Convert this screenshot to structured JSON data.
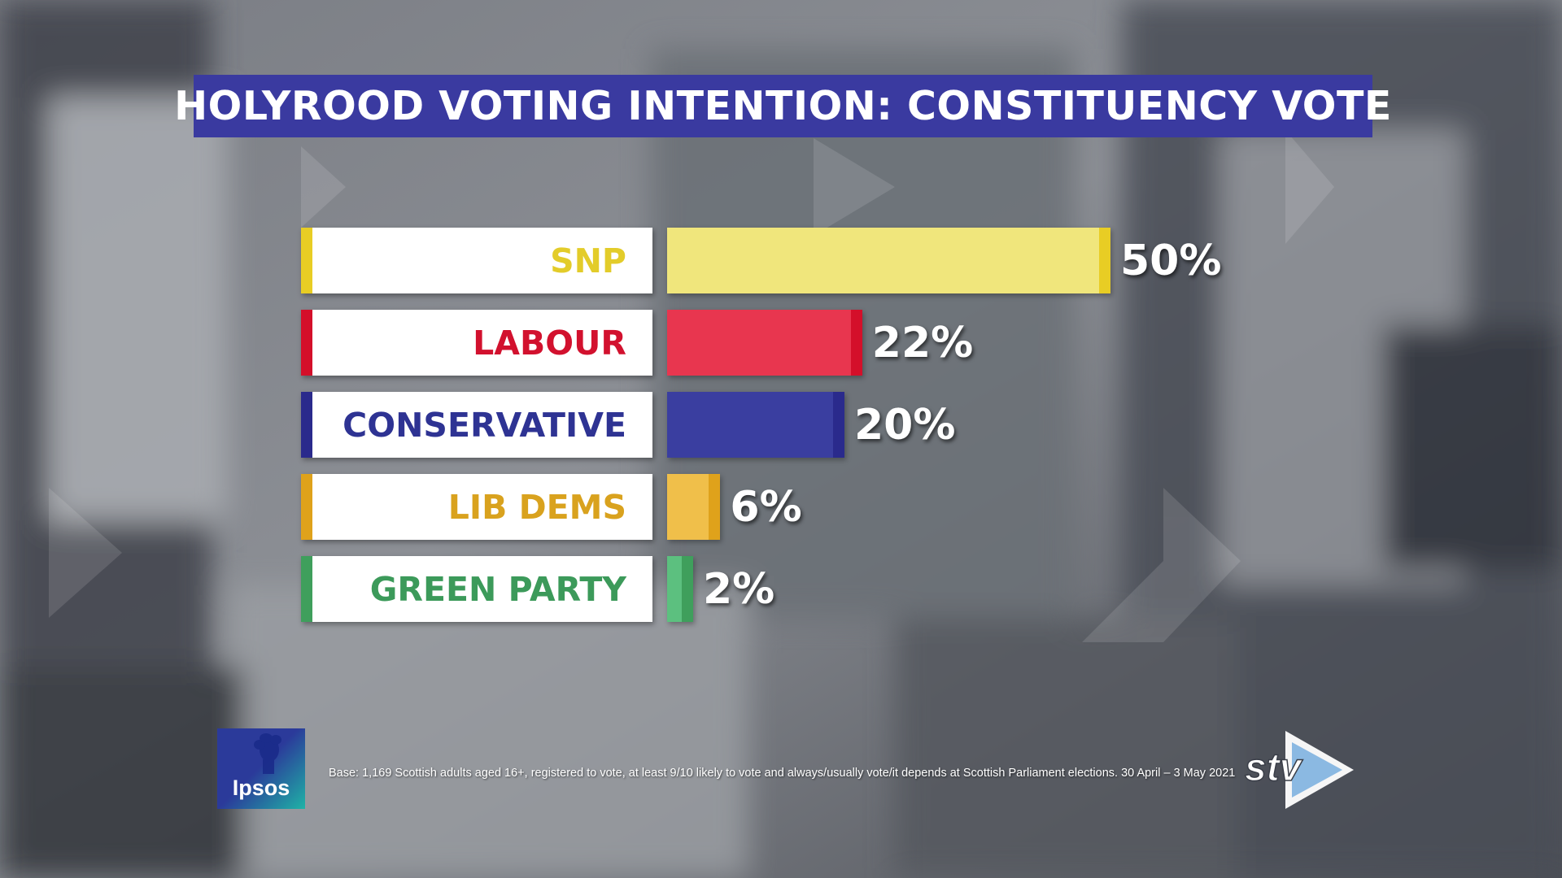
{
  "title": "HOLYROOD VOTING INTENTION: CONSTITUENCY VOTE",
  "footnote": "Base: 1,169 Scottish adults aged 16+, registered to vote, at least 9/10 likely to vote and always/usually vote/it depends at Scottish Parliament elections.  30 April – 3 May 2021",
  "logos": {
    "pollster": "Ipsos",
    "broadcaster": "stv"
  },
  "chart_data": {
    "type": "bar",
    "orientation": "horizontal",
    "title": "HOLYROOD VOTING INTENTION: CONSTITUENCY VOTE",
    "categories": [
      "SNP",
      "LABOUR",
      "CONSERVATIVE",
      "LIB DEMS",
      "GREEN PARTY"
    ],
    "values": [
      50,
      22,
      20,
      6,
      2
    ],
    "value_labels": [
      "50%",
      "22%",
      "20%",
      "6%",
      "2%"
    ],
    "unit": "%",
    "xlim": [
      0,
      50
    ],
    "grid": false,
    "legend": "none",
    "colors": {
      "SNP": {
        "label": "#e3cc2a",
        "bar": "#f0e67c",
        "edge": "#e8cd24"
      },
      "LABOUR": {
        "label": "#d2112e",
        "bar": "#e8364f",
        "edge": "#d40f2a"
      },
      "CONSERVATIVE": {
        "label": "#2e3393",
        "bar": "#3a3ea0",
        "edge": "#2a2a8c"
      },
      "LIB DEMS": {
        "label": "#d9a21e",
        "bar": "#f0bf4a",
        "edge": "#dfa21b"
      },
      "GREEN PARTY": {
        "label": "#3c9a5a",
        "bar": "#5cc07f",
        "edge": "#3f9f5c"
      }
    }
  }
}
